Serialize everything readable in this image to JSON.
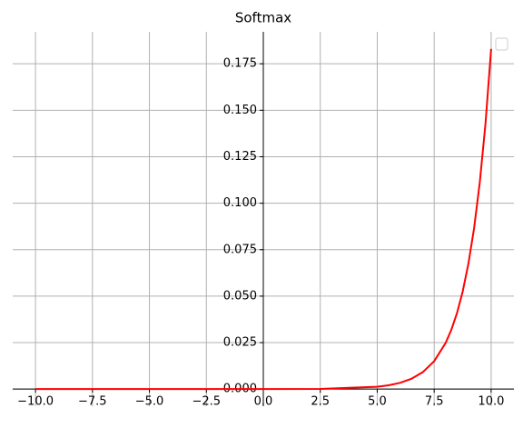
{
  "chart_data": {
    "type": "line",
    "title": "Softmax",
    "x": [
      -10,
      -5,
      0,
      2.5,
      5,
      5.5,
      6,
      6.5,
      7,
      7.5,
      8,
      8.25,
      8.5,
      8.75,
      9,
      9.25,
      9.5,
      9.75,
      10
    ],
    "series": [
      {
        "color": "#ff0000",
        "values": [
          0,
          0,
          1e-05,
          0.0001,
          0.00123,
          0.00203,
          0.00335,
          0.00553,
          0.00911,
          0.01502,
          0.02477,
          0.0318,
          0.0408,
          0.0524,
          0.0673,
          0.0864,
          0.111,
          0.1425,
          0.183
        ]
      }
    ],
    "xlim": [
      -11,
      11
    ],
    "ylim": [
      -0.0092,
      0.1922
    ],
    "xticks": [
      {
        "value": -10,
        "label": "−10.0"
      },
      {
        "value": -7.5,
        "label": "−7.5"
      },
      {
        "value": -5,
        "label": "−5.0"
      },
      {
        "value": -2.5,
        "label": "−2.5"
      },
      {
        "value": 0,
        "label": "0.0"
      },
      2.5,
      {
        "value": 5,
        "label": "5.0"
      },
      7.5,
      {
        "value": 10,
        "label": "10.0"
      }
    ],
    "yticks": [
      {
        "value": 0,
        "label": "0.000"
      },
      {
        "value": 0.025,
        "label": "0.025"
      },
      {
        "value": 0.05,
        "label": "0.050"
      },
      {
        "value": 0.075,
        "label": "0.075"
      },
      {
        "value": 0.1,
        "label": "0.100"
      },
      {
        "value": 0.125,
        "label": "0.125"
      },
      {
        "value": 0.15,
        "label": "0.150"
      },
      {
        "value": 0.175,
        "label": "0.175"
      }
    ],
    "grid": true
  }
}
